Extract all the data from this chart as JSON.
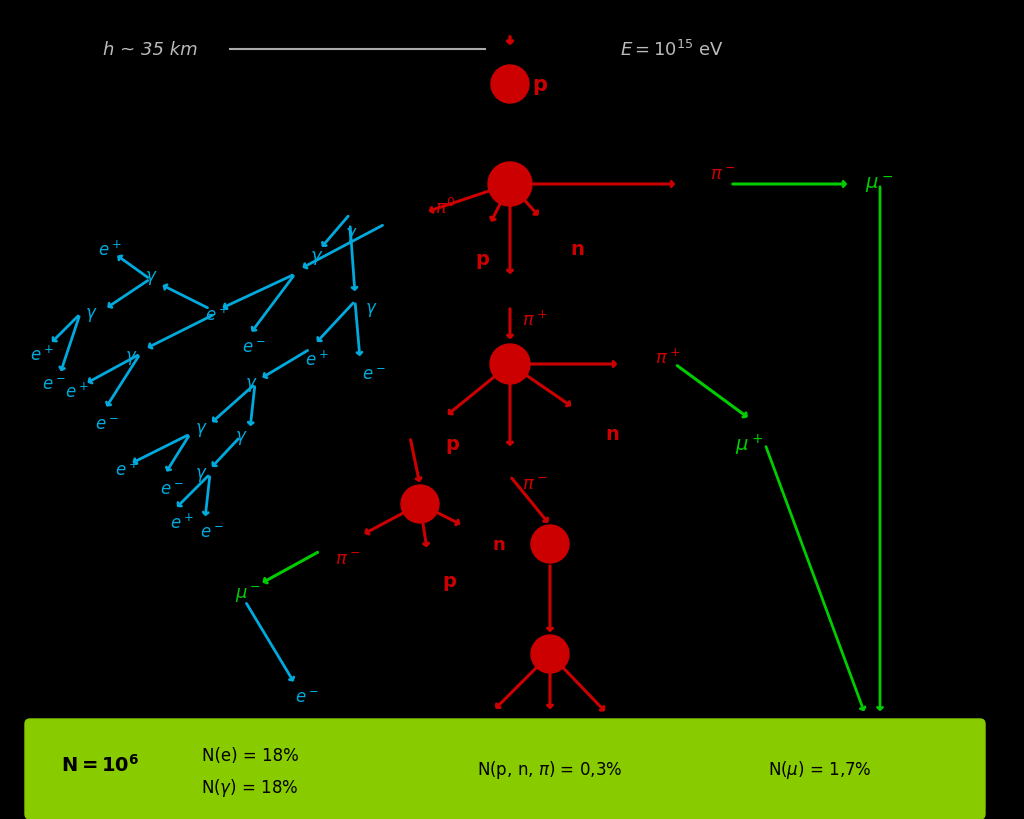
{
  "background_color": "#000000",
  "title_color": "#cccccc",
  "red_color": "#cc0000",
  "blue_color": "#00aadd",
  "green_color": "#00cc00",
  "dark_green": "#008800",
  "node_color": "#cc0000",
  "bottom_box_color": "#88cc00",
  "bottom_text_color": "#000000",
  "header_text": "h ~ 35 km",
  "energy_text": "E = 10",
  "energy_exp": "15",
  "energy_unit": "eV",
  "bottom_N": "N = 10",
  "bottom_N_exp": "6",
  "bottom_stats": [
    "N(e) = 18%",
    "N(γ) = 18%",
    "N(p, n, π) = 0,3%",
    "N(μ) = 1,7%"
  ]
}
